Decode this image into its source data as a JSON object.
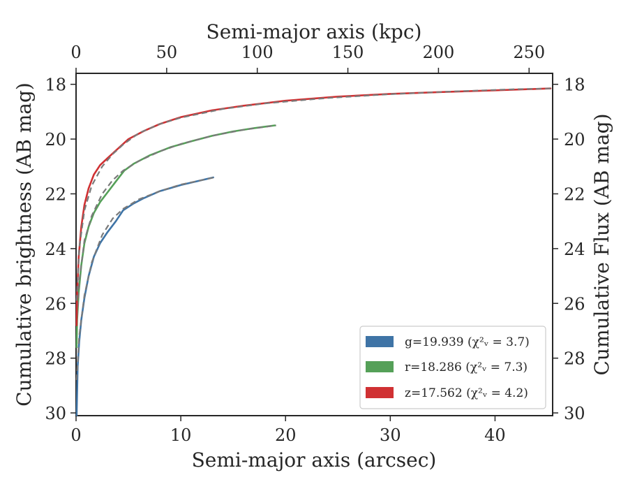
{
  "chart_data": {
    "type": "line",
    "x_axis_bottom": {
      "label": "Semi-major axis (arcsec)",
      "lim": [
        0,
        45.5
      ],
      "ticks": [
        0,
        10,
        20,
        30,
        40
      ]
    },
    "x_axis_top": {
      "label": "Semi-major axis (kpc)",
      "lim": [
        0,
        263
      ],
      "ticks": [
        0,
        50,
        100,
        150,
        200,
        250
      ]
    },
    "y_axis_left": {
      "label": "Cumulative brightness (AB mag)",
      "lim": [
        30.1,
        17.6
      ],
      "inverted": true,
      "ticks": [
        18,
        20,
        22,
        24,
        26,
        28,
        30
      ]
    },
    "y_axis_right": {
      "label": "Cumulative Flux (AB mag)",
      "lim": [
        30.1,
        17.6
      ],
      "inverted": true,
      "ticks": [
        18,
        20,
        22,
        24,
        26,
        28,
        30
      ]
    },
    "legend_placement": "lower-right",
    "series": [
      {
        "name": "g=19.939 ($\\chi^2_\\nu = 3.7$)",
        "legend_label": "g=19.939 (χ²ᵥ = 3.7)",
        "color": "#3f74a6",
        "x": [
          0.05,
          0.15,
          0.3,
          0.5,
          0.8,
          1.2,
          1.7,
          2.3,
          3.0,
          3.8,
          4.5,
          5.5,
          6.5,
          8.0,
          10.0,
          12.0,
          13.1
        ],
        "y": [
          30.1,
          28.3,
          27.4,
          26.6,
          25.8,
          25.0,
          24.3,
          23.8,
          23.4,
          23.0,
          22.6,
          22.35,
          22.15,
          21.9,
          21.68,
          21.5,
          21.4
        ],
        "model_x": [
          0.05,
          0.3,
          0.8,
          1.5,
          2.5,
          3.5,
          4.5,
          6.0,
          8.0,
          10.0,
          12.0,
          13.2
        ],
        "model_y": [
          28.8,
          27.2,
          25.7,
          24.5,
          23.5,
          22.9,
          22.55,
          22.2,
          21.9,
          21.66,
          21.5,
          21.4
        ]
      },
      {
        "name": "r=18.286 ($\\chi^2_\\nu = 7.3$)",
        "legend_label": "r=18.286 (χ²ᵥ = 7.3)",
        "color": "#55a058",
        "x": [
          0.05,
          0.1,
          0.25,
          0.5,
          0.8,
          1.2,
          1.7,
          2.3,
          3.0,
          3.8,
          4.6,
          5.5,
          7.0,
          9.0,
          11.0,
          13.0,
          15.0,
          17.0,
          19.0
        ],
        "y": [
          27.6,
          26.6,
          25.6,
          24.6,
          23.8,
          23.2,
          22.7,
          22.3,
          21.95,
          21.55,
          21.15,
          20.9,
          20.6,
          20.3,
          20.08,
          19.88,
          19.72,
          19.6,
          19.5
        ],
        "model_x": [
          0.05,
          0.3,
          0.8,
          1.5,
          2.5,
          3.5,
          4.5,
          6.0,
          8.0,
          10.0,
          13.0,
          16.0,
          19.1
        ],
        "model_y": [
          26.8,
          25.2,
          23.7,
          22.8,
          22.0,
          21.5,
          21.15,
          20.8,
          20.45,
          20.18,
          19.88,
          19.66,
          19.5
        ]
      },
      {
        "name": "z=17.562 ($\\chi^2_\\nu = 4.2$)",
        "legend_label": "z=17.562 (χ²ᵥ = 4.2)",
        "color": "#d03133",
        "x": [
          0.05,
          0.1,
          0.25,
          0.5,
          0.8,
          1.2,
          1.7,
          2.3,
          3.0,
          4.0,
          5.0,
          6.5,
          8.0,
          10.0,
          13.0,
          16.0,
          20.0,
          25.0,
          30.0,
          35.0,
          40.0,
          45.3
        ],
        "y": [
          26.8,
          25.6,
          24.3,
          23.2,
          22.4,
          21.8,
          21.3,
          20.95,
          20.7,
          20.35,
          20.0,
          19.7,
          19.45,
          19.2,
          18.95,
          18.78,
          18.6,
          18.45,
          18.35,
          18.28,
          18.22,
          18.15
        ],
        "model_x": [
          0.05,
          0.3,
          0.8,
          1.5,
          2.5,
          3.5,
          4.5,
          6.0,
          8.0,
          10.0,
          14.0,
          18.0,
          24.0,
          30.0,
          36.0,
          42.0,
          45.5
        ],
        "model_y": [
          25.9,
          24.0,
          22.6,
          21.7,
          21.0,
          20.55,
          20.2,
          19.78,
          19.45,
          19.22,
          18.9,
          18.7,
          18.5,
          18.36,
          18.26,
          18.18,
          18.15
        ]
      }
    ]
  }
}
